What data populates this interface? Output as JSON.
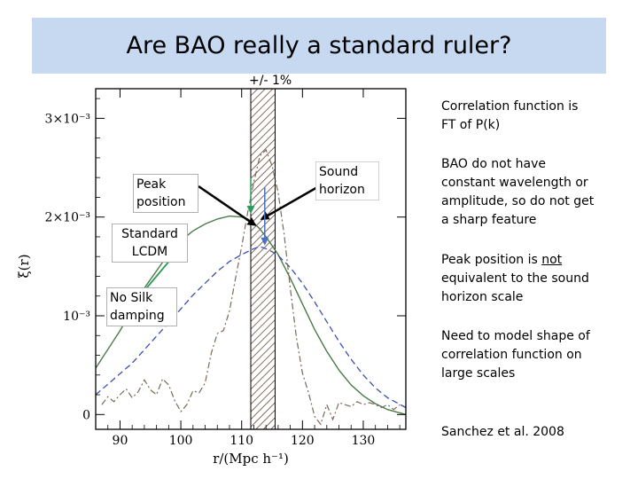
{
  "slide": {
    "title": "Are BAO really a standard ruler?",
    "tolerance_label": "+/- 1%",
    "notes": {
      "correlation": "Correlation function is FT of P(k)",
      "bao_wavelength": "BAO do not have constant wavelength or amplitude, so do not get a sharp feature",
      "peak_pre": "Peak position is ",
      "peak_em": "not",
      "peak_post": " equivalent to the sound horizon scale",
      "model": "Need to model shape of correlation function on large scales",
      "citation": "Sanchez et al. 2008"
    },
    "callouts": {
      "peak_position": "Peak position",
      "sound_horizon": "Sound horizon",
      "standard_lcdm": "Standard LCDM",
      "no_silk": "No Silk damping"
    },
    "colors": {
      "title_bg": "#c6d9f1",
      "standard_lcdm": "#4a7a4a",
      "no_silk": "#3a50b0",
      "dash_dot": "#7a6a5a",
      "arrow_green": "#2a9a5a",
      "arrow_blue": "#4a70c0"
    }
  },
  "chart_data": {
    "type": "line",
    "xlabel": "r/(Mpc h⁻¹)",
    "ylabel": "ξ(r)",
    "xlim": [
      86,
      137
    ],
    "ylim": [
      -0.00015,
      0.0033
    ],
    "x_ticks": [
      90,
      100,
      110,
      120,
      130
    ],
    "x_tick_labels": [
      "90",
      "100",
      "110",
      "120",
      "130"
    ],
    "y_ticks": [
      0,
      0.001,
      0.002,
      0.003
    ],
    "y_tick_labels": [
      "0",
      "10⁻³",
      "2×10⁻³",
      "3×10⁻³"
    ],
    "band": {
      "x0": 111.5,
      "x1": 115.5
    },
    "sound_horizon_r": 113.6,
    "series": [
      {
        "x": [
          86,
          90,
          94,
          98,
          100,
          102,
          104,
          106,
          108,
          110,
          111,
          112,
          113,
          114,
          116,
          118,
          120,
          122,
          124,
          126,
          128,
          130,
          132,
          134,
          137
        ],
        "values": [
          0.00047,
          0.00085,
          0.00128,
          0.00163,
          0.00176,
          0.00186,
          0.00193,
          0.00198,
          0.00201,
          0.002,
          0.00198,
          0.00194,
          0.00188,
          0.0018,
          0.00162,
          0.00138,
          0.00112,
          0.00086,
          0.00064,
          0.00045,
          0.0003,
          0.00019,
          0.00011,
          5e-05,
          0.0
        ]
      },
      {
        "x": [
          86,
          92,
          98,
          102,
          106,
          108,
          110,
          112,
          113,
          114,
          115,
          116,
          118,
          120,
          122,
          124,
          126,
          128,
          130,
          132,
          134,
          137
        ],
        "values": [
          0.0002,
          0.00052,
          0.00093,
          0.00121,
          0.00145,
          0.00155,
          0.00162,
          0.00168,
          0.0017,
          0.00168,
          0.00165,
          0.00161,
          0.00149,
          0.00133,
          0.00114,
          0.00094,
          0.00074,
          0.00056,
          0.0004,
          0.00027,
          0.00017,
          7e-05
        ]
      },
      {
        "x": [
          87,
          88,
          89,
          90,
          91,
          92,
          93,
          94,
          95,
          96,
          97,
          98,
          99,
          100,
          101,
          102,
          103,
          104,
          105,
          106,
          107,
          108,
          109,
          110,
          111,
          112,
          113,
          114,
          115,
          116,
          117,
          118,
          119,
          120,
          121,
          122,
          123,
          124,
          125,
          126,
          127,
          128,
          129,
          130,
          131,
          132,
          133,
          134,
          135,
          136
        ],
        "values": [
          0.0001,
          0.00018,
          0.00013,
          0.0002,
          0.00026,
          0.00017,
          0.00023,
          0.00035,
          0.00025,
          0.0002,
          0.00036,
          0.0003,
          0.00014,
          3e-05,
          0.0001,
          0.00024,
          0.00022,
          0.00032,
          0.00062,
          0.00082,
          0.00085,
          0.00105,
          0.00138,
          0.0017,
          0.00205,
          0.00235,
          0.00262,
          0.00268,
          0.00252,
          0.00225,
          0.00182,
          0.00128,
          0.00078,
          0.00042,
          0.00022,
          -2e-05,
          -0.0001,
          0.0001,
          -5e-05,
          0.00012,
          0.0001,
          8e-05,
          0.00013,
          0.0001,
          0.00012,
          0.0001,
          7e-05,
          0.0001,
          5e-05,
          0.0001
        ]
      }
    ]
  }
}
